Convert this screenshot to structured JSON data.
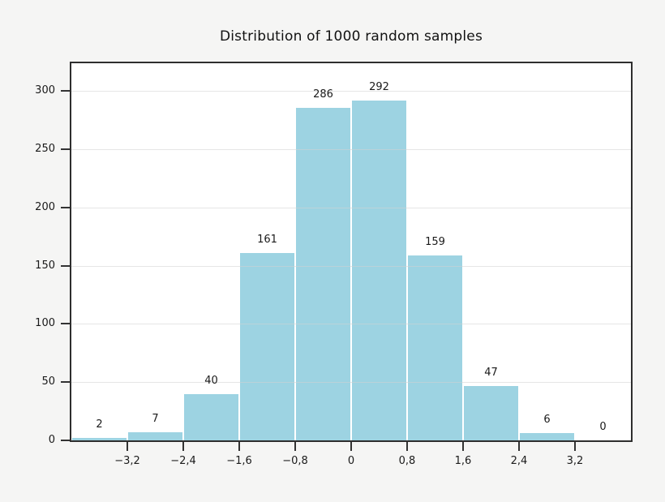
{
  "figure": {
    "canvas_background": "#F5F5F4",
    "plot_background": "#FFFFFF",
    "frame_color": "#2E2E2E",
    "grid_color_rgba": "rgba(210,210,210,0.55)",
    "tick_color": "#333333",
    "text_color": "#1A1A1A"
  },
  "chart_data": {
    "type": "bar",
    "subtype": "histogram",
    "title": "Distribution of 1000 random samples",
    "xlabel": "",
    "ylabel": "",
    "bar_color": "#9DD3E2",
    "bin_edges": [
      -4.0,
      -3.2,
      -2.4,
      -1.6,
      -0.8,
      0.0,
      0.8,
      1.6,
      2.4,
      3.2,
      4.0
    ],
    "values": [
      2,
      7,
      40,
      161,
      286,
      292,
      159,
      47,
      6,
      0
    ],
    "bar_labels": [
      "2",
      "7",
      "40",
      "161",
      "286",
      "292",
      "159",
      "47",
      "6",
      "0"
    ],
    "xlim": [
      -4,
      4
    ],
    "ylim": [
      0,
      324
    ],
    "x_ticks": [
      {
        "value": -3.2,
        "label": "−3,2"
      },
      {
        "value": -2.4,
        "label": "−2,4"
      },
      {
        "value": -1.6,
        "label": "−1,6"
      },
      {
        "value": -0.8,
        "label": "−0,8"
      },
      {
        "value": 0.0,
        "label": "0"
      },
      {
        "value": 0.8,
        "label": "0,8"
      },
      {
        "value": 1.6,
        "label": "1,6"
      },
      {
        "value": 2.4,
        "label": "2,4"
      },
      {
        "value": 3.2,
        "label": "3,2"
      }
    ],
    "y_ticks": [
      {
        "value": 0,
        "label": "0"
      },
      {
        "value": 50,
        "label": "50"
      },
      {
        "value": 100,
        "label": "100"
      },
      {
        "value": 150,
        "label": "150"
      },
      {
        "value": 200,
        "label": "200"
      },
      {
        "value": 250,
        "label": "250"
      },
      {
        "value": 300,
        "label": "300"
      }
    ],
    "grid": "horizontal",
    "legend": "none"
  }
}
